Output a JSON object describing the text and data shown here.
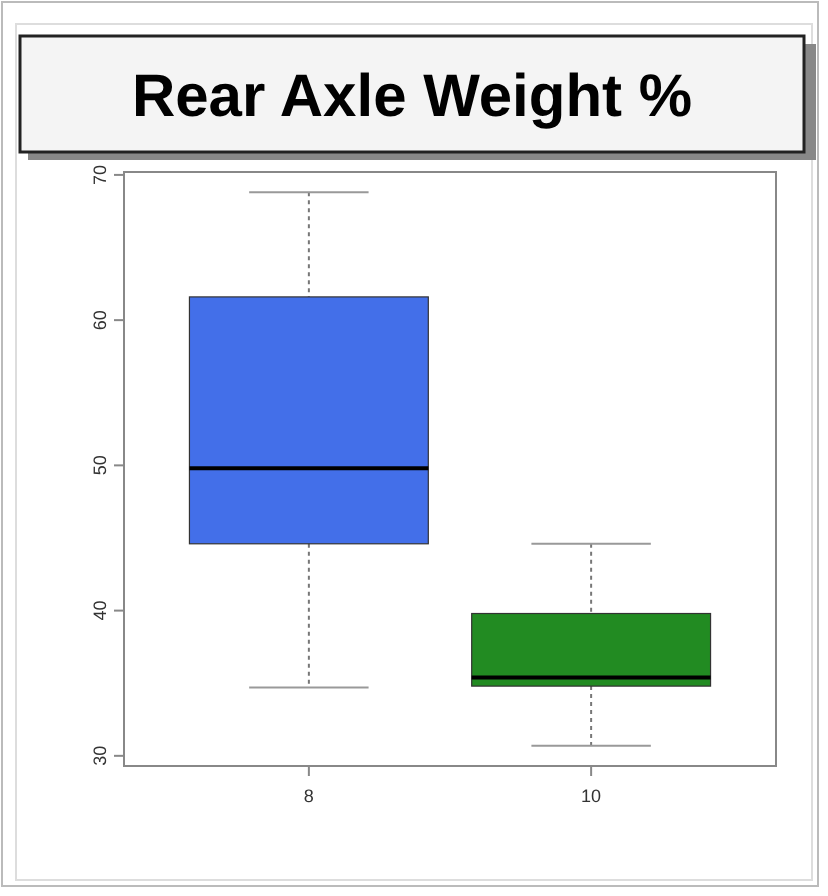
{
  "chart_data": {
    "type": "box",
    "title": "Rear Axle Weight %",
    "categories": [
      "8",
      "10"
    ],
    "boxes": [
      {
        "low": 34.7,
        "q1": 44.6,
        "median": 49.8,
        "q3": 61.6,
        "high": 68.8
      },
      {
        "low": 30.7,
        "q1": 34.8,
        "median": 35.4,
        "q3": 39.8,
        "high": 44.6
      }
    ],
    "colors": [
      "#436fe9",
      "#228b22"
    ],
    "ylim": [
      29.3,
      70.2
    ],
    "yticks": [
      30,
      40,
      50,
      60,
      70
    ],
    "grid": false
  }
}
